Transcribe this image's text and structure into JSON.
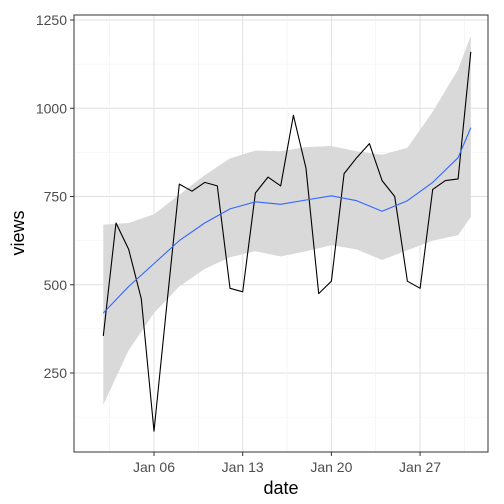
{
  "chart_data": {
    "type": "line",
    "xlabel": "date",
    "ylabel": "views",
    "x_axis": {
      "scale": "date",
      "range": [
        "2016-01-01",
        "2016-01-31"
      ],
      "ticks": [
        "Jan 06",
        "Jan 13",
        "Jan 20",
        "Jan 27"
      ]
    },
    "y_axis": {
      "range": [
        50,
        1250
      ],
      "ticks": [
        250,
        500,
        750,
        1000,
        1250
      ]
    },
    "grid": true,
    "legend": "none",
    "series": [
      {
        "kind": "observed",
        "color": "#000000",
        "x": [
          "2016-01-02",
          "2016-01-03",
          "2016-01-04",
          "2016-01-05",
          "2016-01-06",
          "2016-01-07",
          "2016-01-08",
          "2016-01-09",
          "2016-01-10",
          "2016-01-11",
          "2016-01-12",
          "2016-01-13",
          "2016-01-14",
          "2016-01-15",
          "2016-01-16",
          "2016-01-17",
          "2016-01-18",
          "2016-01-19",
          "2016-01-20",
          "2016-01-21",
          "2016-01-22",
          "2016-01-23",
          "2016-01-24",
          "2016-01-25",
          "2016-01-26",
          "2016-01-27",
          "2016-01-28",
          "2016-01-29",
          "2016-01-30",
          "2016-01-31"
        ],
        "y": [
          355,
          675,
          600,
          460,
          85,
          440,
          785,
          765,
          790,
          780,
          490,
          480,
          760,
          805,
          780,
          980,
          830,
          475,
          510,
          815,
          860,
          900,
          795,
          750,
          510,
          490,
          770,
          795,
          800,
          1160
        ]
      },
      {
        "kind": "smooth",
        "color": "#3366ff",
        "x": [
          "2016-01-02",
          "2016-01-04",
          "2016-01-06",
          "2016-01-08",
          "2016-01-10",
          "2016-01-12",
          "2016-01-14",
          "2016-01-16",
          "2016-01-18",
          "2016-01-20",
          "2016-01-22",
          "2016-01-24",
          "2016-01-26",
          "2016-01-28",
          "2016-01-30",
          "2016-01-31"
        ],
        "y": [
          420,
          495,
          560,
          625,
          675,
          715,
          735,
          728,
          740,
          752,
          738,
          708,
          738,
          790,
          860,
          945
        ]
      }
    ],
    "confidence_band": {
      "color": "#d9d9d9",
      "x": [
        "2016-01-02",
        "2016-01-04",
        "2016-01-06",
        "2016-01-08",
        "2016-01-10",
        "2016-01-12",
        "2016-01-14",
        "2016-01-16",
        "2016-01-18",
        "2016-01-20",
        "2016-01-22",
        "2016-01-24",
        "2016-01-26",
        "2016-01-28",
        "2016-01-30",
        "2016-01-31"
      ],
      "upper": [
        670,
        675,
        700,
        755,
        810,
        858,
        880,
        878,
        890,
        893,
        878,
        868,
        888,
        990,
        1110,
        1205
      ],
      "lower": [
        160,
        315,
        420,
        495,
        545,
        578,
        595,
        580,
        595,
        612,
        600,
        570,
        598,
        625,
        640,
        692
      ]
    }
  }
}
